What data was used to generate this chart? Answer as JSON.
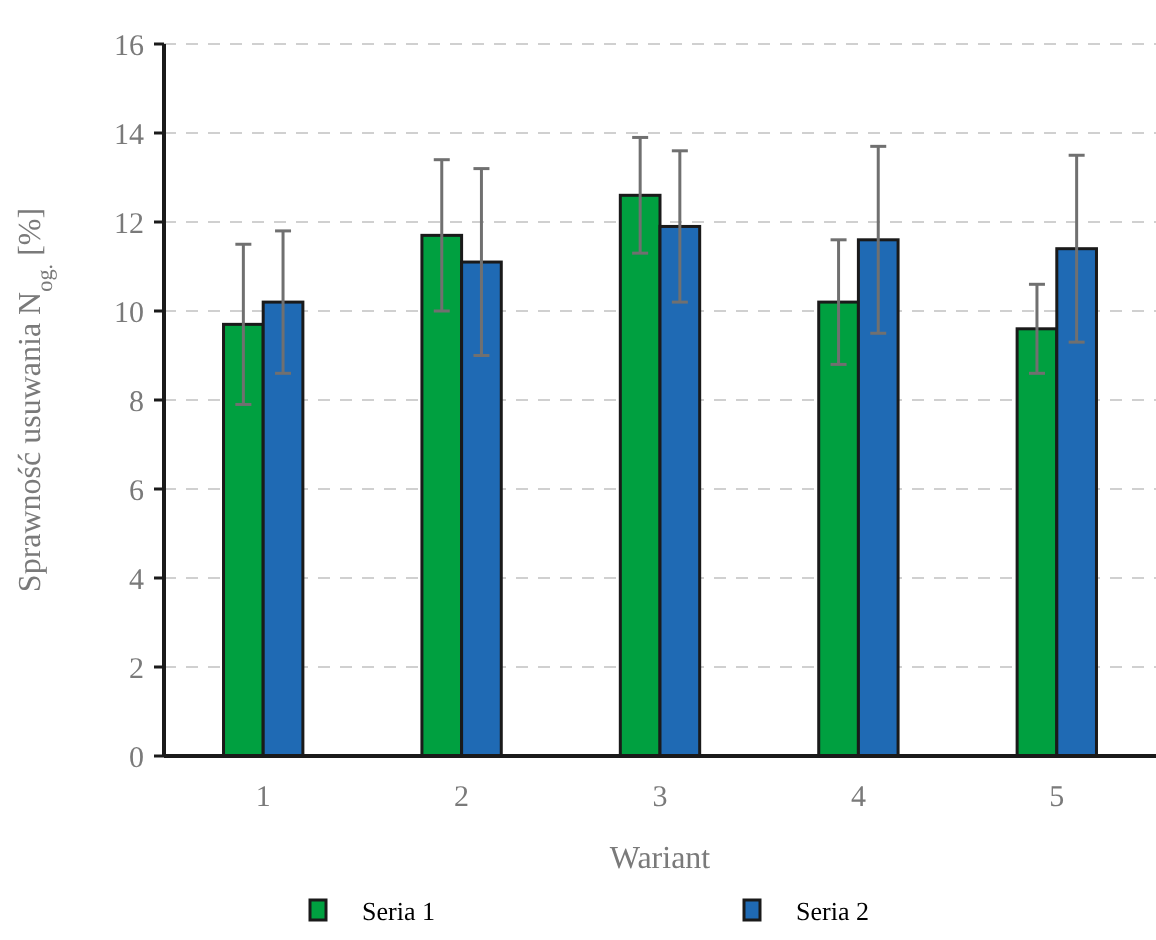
{
  "chart_data": {
    "type": "bar",
    "xlabel": "Wariant",
    "ylabel": "Sprawność usuwania N$_{og.}$ [%]",
    "categories": [
      "1",
      "2",
      "3",
      "4",
      "5"
    ],
    "series": [
      {
        "name": "Seria 1",
        "color": "#00a040",
        "values": [
          9.7,
          11.7,
          12.6,
          10.2,
          9.6
        ],
        "errors": [
          [
            7.9,
            11.5
          ],
          [
            10.0,
            13.4
          ],
          [
            11.3,
            13.9
          ],
          [
            8.8,
            11.6
          ],
          [
            8.6,
            10.6
          ]
        ]
      },
      {
        "name": "Seria 2",
        "color": "#1f6ab4",
        "values": [
          10.2,
          11.1,
          11.9,
          11.6,
          11.4
        ],
        "errors": [
          [
            8.6,
            11.8
          ],
          [
            9.0,
            13.2
          ],
          [
            10.2,
            13.6
          ],
          [
            9.5,
            13.7
          ],
          [
            9.3,
            13.5
          ]
        ]
      }
    ],
    "ylim": [
      0,
      16
    ],
    "yticks": [
      0,
      2,
      4,
      6,
      8,
      10,
      12,
      14,
      16
    ],
    "grid": "y",
    "legend": "bottom"
  }
}
